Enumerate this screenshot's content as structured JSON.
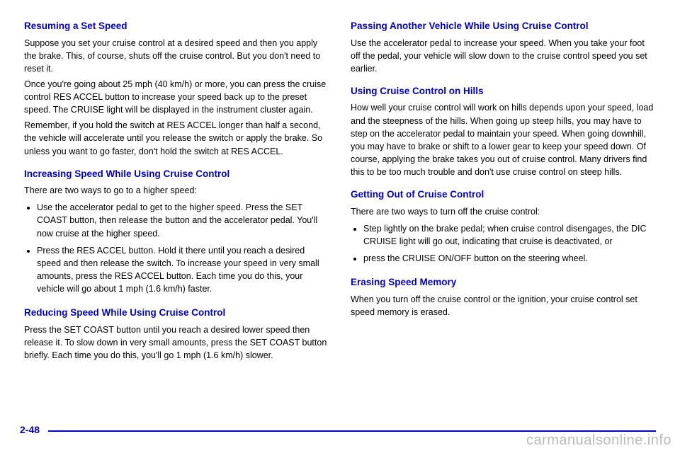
{
  "colors": {
    "heading_color": "#0000cc",
    "body_color": "#000000",
    "rule_color": "#0000cc",
    "watermark_color": "#bbbbbb",
    "background": "#ffffff"
  },
  "typography": {
    "heading_size_pt": 13.5,
    "body_size_pt": 12.5,
    "heading_weight": "bold",
    "font_family": "Arial"
  },
  "left": {
    "h1": "Resuming a Set Speed",
    "p1": "Suppose you set your cruise control at a desired speed and then you apply the brake. This, of course, shuts off the cruise control. But you don't need to reset it.",
    "p2": "Once you're going about 25 mph (40 km/h) or more, you can press the cruise control RES ACCEL button to increase your speed back up to the preset speed. The CRUISE light will be displayed in the instrument cluster again.",
    "p3": "Remember, if you hold the switch at RES ACCEL longer than half a second, the vehicle will accelerate until you release the switch or apply the brake. So unless you want to go faster, don't hold the switch at RES ACCEL.",
    "h2": "Increasing Speed While Using Cruise Control",
    "p4": "There are two ways to go to a higher speed:",
    "li1": "Use the accelerator pedal to get to the higher speed. Press the SET COAST button, then release the button and the accelerator pedal. You'll now cruise at the higher speed.",
    "li2": "Press the RES ACCEL button. Hold it there until you reach a desired speed and then release the switch. To increase your speed in very small amounts, press the RES ACCEL button. Each time you do this, your vehicle will go about 1 mph (1.6 km/h) faster.",
    "h3": "Reducing Speed While Using Cruise Control",
    "p5": "Press the SET COAST button until you reach a desired lower speed then release it. To slow down in very small amounts, press the SET COAST button briefly. Each time you do this, you'll go 1 mph (1.6 km/h) slower."
  },
  "right": {
    "h1": "Passing Another Vehicle While Using Cruise Control",
    "p1": "Use the accelerator pedal to increase your speed. When you take your foot off the pedal, your vehicle will slow down to the cruise control speed you set earlier.",
    "h2": "Using Cruise Control on Hills",
    "p2": "How well your cruise control will work on hills depends upon your speed, load and the steepness of the hills. When going up steep hills, you may have to step on the accelerator pedal to maintain your speed. When going downhill, you may have to brake or shift to a lower gear to keep your speed down. Of course, applying the brake takes you out of cruise control. Many drivers find this to be too much trouble and don't use cruise control on steep hills.",
    "h3": "Getting Out of Cruise Control",
    "p3": "There are two ways to turn off the cruise control:",
    "li1": "Step lightly on the brake pedal; when cruise control disengages, the DIC CRUISE light will go out, indicating that cruise is deactivated, or",
    "li2": "press the CRUISE ON/OFF button on the steering wheel.",
    "h4": "Erasing Speed Memory",
    "p4": "When you turn off the cruise control or the ignition, your cruise control set speed memory is erased."
  },
  "page_number": "2-48",
  "watermark": "carmanualsonline.info"
}
